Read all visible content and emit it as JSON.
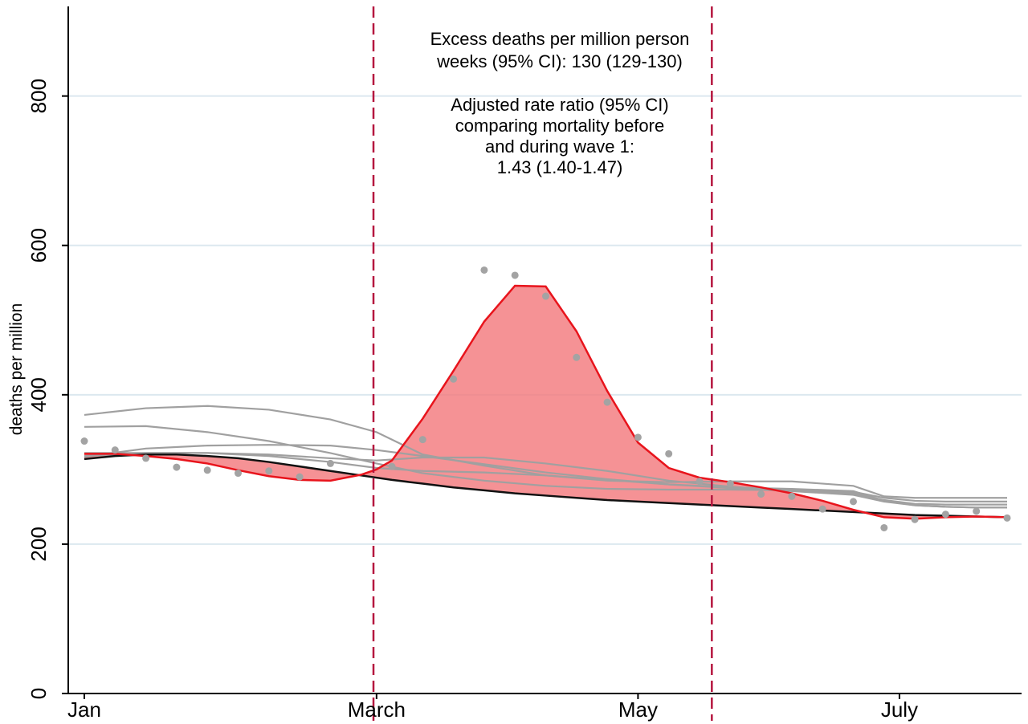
{
  "chart_data": {
    "type": "line",
    "title": "",
    "xlabel": "",
    "ylabel": "deaths per million",
    "ylim": [
      0,
      920
    ],
    "xlim": [
      1,
      31
    ],
    "x_unit": "week of year",
    "grid": true,
    "y_ticks": [
      0,
      200,
      400,
      600,
      800
    ],
    "x_ticks": [
      {
        "label": "Jan",
        "week": 1
      },
      {
        "label": "March",
        "week": 10.5
      },
      {
        "label": "May",
        "week": 19
      },
      {
        "label": "July",
        "week": 27.5
      }
    ],
    "wave_start_week": 10.4,
    "wave_end_week": 21.4,
    "observed_points": {
      "week": [
        1,
        2,
        3,
        4,
        5,
        6,
        7,
        8,
        9,
        11,
        12,
        13,
        14,
        15,
        16,
        17,
        18,
        19,
        20,
        21,
        22,
        23,
        24,
        25,
        26,
        27,
        28,
        29,
        30,
        31
      ],
      "value": [
        338,
        326,
        315,
        303,
        299,
        295,
        298,
        290,
        308,
        304,
        340,
        421,
        567,
        560,
        532,
        450,
        390,
        343,
        321,
        284,
        281,
        267,
        264,
        247,
        257,
        222,
        233,
        240,
        244,
        235
      ]
    },
    "series": [
      {
        "name": "",
        "role": "fitted",
        "color": "#e8141c",
        "week": [
          1,
          2,
          3,
          4,
          5,
          6,
          7,
          8,
          9,
          10,
          10.5,
          11,
          12,
          13,
          14,
          15,
          16,
          17,
          18,
          19,
          20,
          21,
          22,
          23,
          24,
          25,
          26,
          27,
          28,
          29,
          30,
          31
        ],
        "values": [
          321,
          321,
          318,
          314,
          308,
          299,
          291,
          286,
          285,
          293,
          300,
          312,
          368,
          432,
          498,
          546,
          545,
          485,
          405,
          336,
          302,
          289,
          283,
          276,
          268,
          258,
          246,
          236,
          234,
          236,
          237,
          236
        ]
      },
      {
        "name": "",
        "role": "expected",
        "color": "#111111",
        "week": [
          1,
          2,
          3,
          4,
          5,
          6,
          7,
          8,
          9,
          10,
          11,
          12,
          13,
          14,
          15,
          16,
          17,
          18,
          19,
          20,
          21,
          22,
          23,
          24,
          25,
          26,
          27,
          28,
          29,
          30,
          31
        ],
        "values": [
          314,
          318,
          320,
          320,
          318,
          315,
          310,
          304,
          298,
          292,
          286,
          281,
          276,
          272,
          268,
          265,
          262,
          259,
          257,
          255,
          253,
          251,
          249,
          247,
          245,
          243,
          241,
          239,
          238,
          237,
          236
        ]
      },
      {
        "name": "",
        "role": "prior-year",
        "color": "#a0a0a0",
        "week": [
          1,
          3,
          5,
          7,
          9,
          10.5,
          12,
          14,
          16,
          18,
          20,
          22,
          24,
          26,
          27,
          28,
          29,
          30,
          31
        ],
        "values": [
          373,
          382,
          385,
          380,
          367,
          350,
          320,
          305,
          292,
          285,
          283,
          284,
          284,
          278,
          264,
          262,
          262,
          262,
          262
        ]
      },
      {
        "name": "",
        "role": "prior-year",
        "color": "#a0a0a0",
        "week": [
          1,
          3,
          5,
          7,
          9,
          10.5,
          12,
          14,
          16,
          18,
          20,
          22,
          24,
          26,
          27,
          28,
          29,
          30,
          31
        ],
        "values": [
          357,
          358,
          350,
          338,
          322,
          308,
          295,
          285,
          278,
          274,
          273,
          273,
          272,
          270,
          262,
          258,
          257,
          257,
          257
        ]
      },
      {
        "name": "",
        "role": "prior-year",
        "color": "#a0a0a0",
        "week": [
          1,
          3,
          5,
          7,
          9,
          10.5,
          12,
          14,
          16,
          18,
          20,
          22,
          24,
          26,
          27,
          28,
          29,
          30,
          31
        ],
        "values": [
          317,
          328,
          332,
          333,
          332,
          326,
          318,
          307,
          296,
          287,
          280,
          276,
          274,
          271,
          258,
          252,
          250,
          249,
          249
        ]
      },
      {
        "name": "",
        "role": "prior-year",
        "color": "#a0a0a0",
        "week": [
          1,
          3,
          5,
          7,
          9,
          10.5,
          12,
          14,
          16,
          18,
          20,
          22,
          24,
          26,
          27,
          28,
          29,
          30,
          31
        ],
        "values": [
          322,
          322,
          322,
          320,
          315,
          312,
          316,
          316,
          308,
          298,
          285,
          277,
          271,
          266,
          257,
          252,
          250,
          249,
          249
        ]
      },
      {
        "name": "",
        "role": "prior-year",
        "color": "#a0a0a0",
        "week": [
          1,
          3,
          5,
          7,
          9,
          10.5,
          12,
          14,
          16,
          18,
          20,
          22,
          24,
          26,
          27,
          28,
          29,
          30,
          31
        ],
        "values": [
          318,
          322,
          322,
          318,
          310,
          302,
          298,
          296,
          292,
          286,
          280,
          275,
          272,
          268,
          259,
          254,
          253,
          253,
          253
        ]
      }
    ],
    "annotations": [
      "Excess deaths per million person",
      "weeks (95% CI): 130 (129-130)",
      "Adjusted rate ratio (95% CI)",
      "comparing mortality before",
      "and during wave 1:",
      "1.43 (1.40-1.47)"
    ],
    "colors": {
      "fill": "#f2777a",
      "fitted_line": "#e8141c",
      "expected_line": "#111111",
      "prior_years": "#a0a0a0",
      "points": "#a3a3a3",
      "wave_markers": "#b5163f",
      "grid": "#dce8ef"
    }
  }
}
